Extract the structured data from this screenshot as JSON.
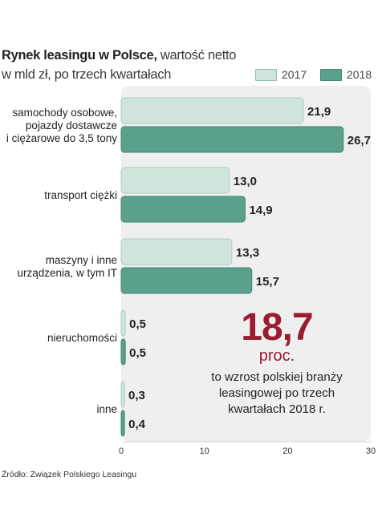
{
  "title": {
    "bold": "Rynek leasingu w Polsce,",
    "rest": " wartość netto",
    "line2": "w mld zł, po trzech kwartałach"
  },
  "legend": [
    {
      "label": "2017",
      "color": "#cfe4da",
      "border": "#8fbfa9"
    },
    {
      "label": "2018",
      "color": "#5aa08c",
      "border": "#3f8573"
    }
  ],
  "colors": {
    "panel": "#efefef",
    "bar2017": "#cfe4da",
    "bar2017_edge": "#a8cfbe",
    "bar2018": "#5aa08c",
    "bar2018_edge": "#3f8573",
    "callout": "#9b1b30"
  },
  "chart_data": {
    "type": "bar",
    "orientation": "horizontal",
    "categories": [
      [
        "samochody osobowe,",
        "pojazdy dostawcze",
        "i ciężarowe do 3,5 tony"
      ],
      [
        "transport ciężki"
      ],
      [
        "maszyny i inne",
        "urządzenia, w tym IT"
      ],
      [
        "nieruchomości"
      ],
      [
        "inne"
      ]
    ],
    "series": [
      {
        "name": "2017",
        "values": [
          21.9,
          13.0,
          13.3,
          0.5,
          0.3
        ],
        "labels": [
          "21,9",
          "13,0",
          "13,3",
          "0,5",
          "0,3"
        ]
      },
      {
        "name": "2018",
        "values": [
          26.7,
          14.9,
          15.7,
          0.5,
          0.4
        ],
        "labels": [
          "26,7",
          "14,9",
          "15,7",
          "0,5",
          "0,4"
        ]
      }
    ],
    "xlim": [
      0,
      30
    ],
    "xticks": [
      "0",
      "10",
      "20",
      "30"
    ],
    "legend_position": "top-right",
    "grid": false
  },
  "callout": {
    "value": "18,7",
    "unit": "proc.",
    "text": "to wzrost polskiej branży leasingowej po trzech kwartałach 2018 r."
  },
  "source": "Źródło: Związek Polskiego Leasingu"
}
